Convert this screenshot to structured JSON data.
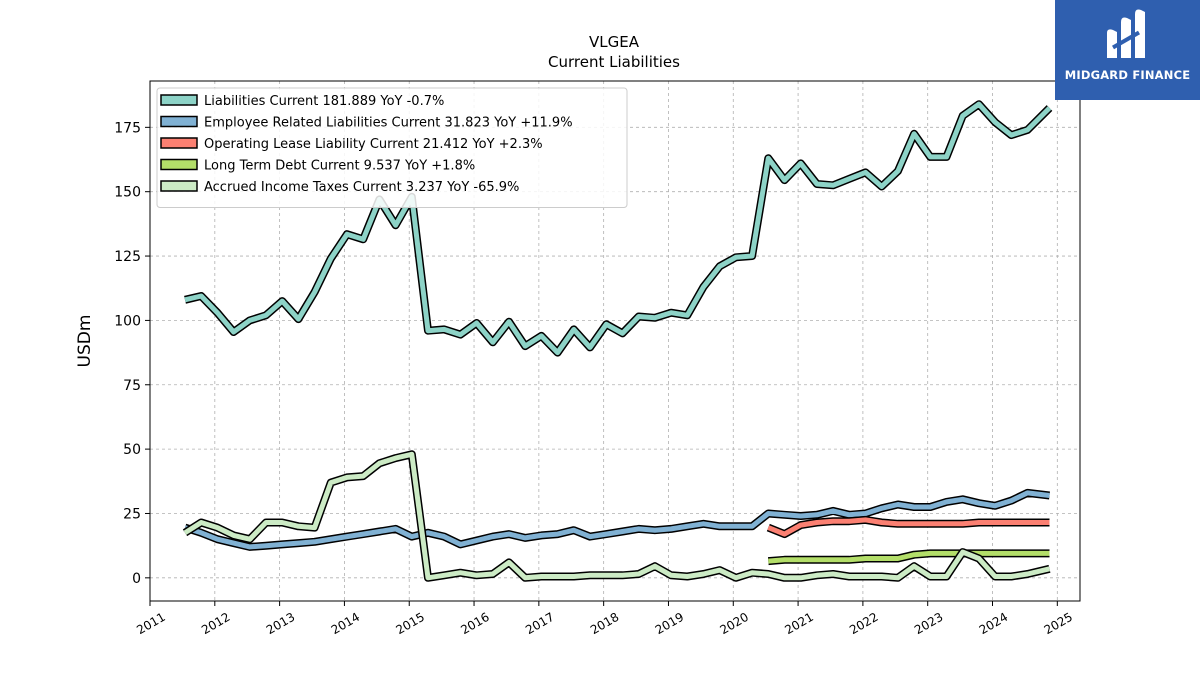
{
  "brand": {
    "name": "MIDGARD FINANCE",
    "bg_color": "#2f5faf"
  },
  "chart_data": {
    "type": "line",
    "title": "VLGEA",
    "subtitle": "Current  Liabilities",
    "xlabel": "",
    "ylabel": "USDm",
    "xlim": [
      2011.0,
      2025.35
    ],
    "ylim": [
      -9,
      193
    ],
    "x_ticks": [
      2011,
      2012,
      2013,
      2014,
      2015,
      2016,
      2017,
      2018,
      2019,
      2020,
      2021,
      2022,
      2023,
      2024,
      2025
    ],
    "y_ticks": [
      0,
      25,
      50,
      75,
      100,
      125,
      150,
      175
    ],
    "grid": true,
    "legend_position": "top-left",
    "series": [
      {
        "name": "Liabilities Current  181.889 YoY -0.7%",
        "color": "#8dd3c7",
        "x": [
          2011.54,
          2011.79,
          2012.04,
          2012.29,
          2012.54,
          2012.79,
          2013.04,
          2013.29,
          2013.54,
          2013.79,
          2014.04,
          2014.29,
          2014.54,
          2014.79,
          2015.04,
          2015.29,
          2015.54,
          2015.79,
          2016.04,
          2016.29,
          2016.54,
          2016.79,
          2017.04,
          2017.29,
          2017.54,
          2017.79,
          2018.04,
          2018.29,
          2018.54,
          2018.79,
          2019.04,
          2019.29,
          2019.54,
          2019.79,
          2020.04,
          2020.29,
          2020.54,
          2020.79,
          2021.04,
          2021.29,
          2021.54,
          2021.79,
          2022.04,
          2022.29,
          2022.54,
          2022.79,
          2023.04,
          2023.29,
          2023.54,
          2023.79,
          2024.04,
          2024.29,
          2024.54,
          2024.88
        ],
        "values": [
          108,
          109.5,
          103,
          95.5,
          100,
          102,
          107.5,
          100.5,
          111,
          124,
          133.5,
          131.5,
          147,
          137,
          148,
          96,
          96.5,
          94.5,
          99,
          91.5,
          99.5,
          90,
          94,
          87.5,
          96.5,
          89.5,
          98.5,
          95,
          101.5,
          101,
          103,
          102,
          113,
          121,
          124.5,
          125,
          163,
          154.5,
          161,
          153,
          152.5,
          155,
          157.5,
          152,
          158,
          172.5,
          163.5,
          163.5,
          179.5,
          184,
          177,
          172,
          174,
          182.5
        ]
      },
      {
        "name": "Employee Related Liabilities Current  31.823 YoY +11.9%",
        "color": "#80b1d3",
        "x": [
          2011.54,
          2011.79,
          2012.04,
          2012.29,
          2012.54,
          2012.79,
          2013.04,
          2013.29,
          2013.54,
          2013.79,
          2014.04,
          2014.29,
          2014.54,
          2014.79,
          2015.04,
          2015.29,
          2015.54,
          2015.79,
          2016.04,
          2016.29,
          2016.54,
          2016.79,
          2017.04,
          2017.29,
          2017.54,
          2017.79,
          2018.04,
          2018.29,
          2018.54,
          2018.79,
          2019.04,
          2019.29,
          2019.54,
          2019.79,
          2020.04,
          2020.29,
          2020.54,
          2020.79,
          2021.04,
          2021.29,
          2021.54,
          2021.79,
          2022.04,
          2022.29,
          2022.54,
          2022.79,
          2023.04,
          2023.29,
          2023.54,
          2023.79,
          2024.04,
          2024.29,
          2024.54,
          2024.88
        ],
        "values": [
          19.5,
          17.5,
          15,
          13.5,
          12,
          12.5,
          13,
          13.5,
          14,
          15,
          16,
          17,
          18,
          19,
          16,
          17.5,
          16,
          13,
          14.5,
          16,
          17,
          15.5,
          16.5,
          17,
          18.5,
          16,
          17,
          18,
          19,
          18.5,
          19,
          20,
          21,
          20,
          20,
          20,
          25,
          24.5,
          24,
          24.5,
          26,
          24.5,
          25,
          27,
          28.5,
          27.5,
          27.5,
          29.5,
          30.5,
          29,
          28,
          30,
          33,
          32
        ]
      },
      {
        "name": "Operating Lease Liability Current  21.412 YoY +2.3%",
        "color": "#fb8072",
        "x": [
          2020.54,
          2020.79,
          2021.04,
          2021.29,
          2021.54,
          2021.79,
          2022.04,
          2022.29,
          2022.54,
          2022.79,
          2023.04,
          2023.29,
          2023.54,
          2023.79,
          2024.04,
          2024.29,
          2024.54,
          2024.88
        ],
        "values": [
          19.5,
          17,
          20.5,
          21.5,
          22,
          22,
          22.5,
          21.5,
          21,
          21,
          21,
          21,
          21,
          21.5,
          21.5,
          21.5,
          21.5,
          21.5
        ]
      },
      {
        "name": "Long Term Debt Current  9.537 YoY +1.8%",
        "color": "#b3de69",
        "x": [
          2020.54,
          2020.79,
          2021.04,
          2021.29,
          2021.54,
          2021.79,
          2022.04,
          2022.29,
          2022.54,
          2022.79,
          2023.04,
          2023.29,
          2023.54,
          2023.79,
          2024.04,
          2024.29,
          2024.54,
          2024.88
        ],
        "values": [
          6.5,
          7,
          7,
          7,
          7,
          7,
          7.5,
          7.5,
          7.5,
          9,
          9.5,
          9.5,
          9.5,
          9.5,
          9.5,
          9.5,
          9.5,
          9.5
        ]
      },
      {
        "name": "Accrued Income Taxes Current  3.237 YoY -65.9%",
        "color": "#ccebc5",
        "x": [
          2011.54,
          2011.79,
          2012.04,
          2012.29,
          2012.54,
          2012.79,
          2013.04,
          2013.29,
          2013.54,
          2013.79,
          2014.04,
          2014.29,
          2014.54,
          2014.79,
          2015.04,
          2015.29,
          2015.54,
          2015.79,
          2016.04,
          2016.29,
          2016.54,
          2016.79,
          2017.04,
          2017.29,
          2017.54,
          2017.79,
          2018.04,
          2018.29,
          2018.54,
          2018.79,
          2019.04,
          2019.29,
          2019.54,
          2019.79,
          2020.04,
          2020.29,
          2020.54,
          2020.79,
          2021.04,
          2021.29,
          2021.54,
          2021.79,
          2022.04,
          2022.29,
          2022.54,
          2022.79,
          2023.04,
          2023.29,
          2023.54,
          2023.79,
          2024.04,
          2024.29,
          2024.54,
          2024.88
        ],
        "values": [
          17.5,
          21.5,
          19.5,
          16.5,
          15,
          21.5,
          21.5,
          20,
          19.5,
          37,
          39,
          39.5,
          44.5,
          46.5,
          48,
          0,
          1,
          2,
          1,
          1.5,
          6,
          0,
          0.5,
          0.5,
          0.5,
          1,
          1,
          1,
          1.5,
          4.5,
          1,
          0.5,
          1.5,
          3,
          0,
          2,
          1.5,
          0,
          0,
          1,
          1.5,
          0.5,
          0.5,
          0.5,
          0,
          4.5,
          0.5,
          0.5,
          10,
          7.5,
          0.5,
          0.5,
          1.5,
          3.5
        ]
      }
    ]
  }
}
